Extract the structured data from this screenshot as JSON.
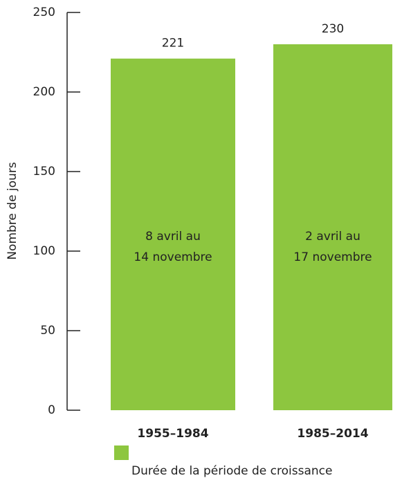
{
  "chart_data": {
    "type": "bar",
    "ylabel": "Nombre de jours",
    "categories": [
      "1955–1984",
      "1985–2014"
    ],
    "series": [
      {
        "name": "Durée de la période de croissance",
        "color": "#8dc63f",
        "values": [
          221,
          230
        ]
      }
    ],
    "annotations": [
      [
        "8 avril au",
        "14 novembre"
      ],
      [
        "2 avril au",
        "17 novembre"
      ]
    ],
    "ylim": [
      0,
      250
    ],
    "yticks": [
      0,
      50,
      100,
      150,
      200,
      250
    ]
  }
}
